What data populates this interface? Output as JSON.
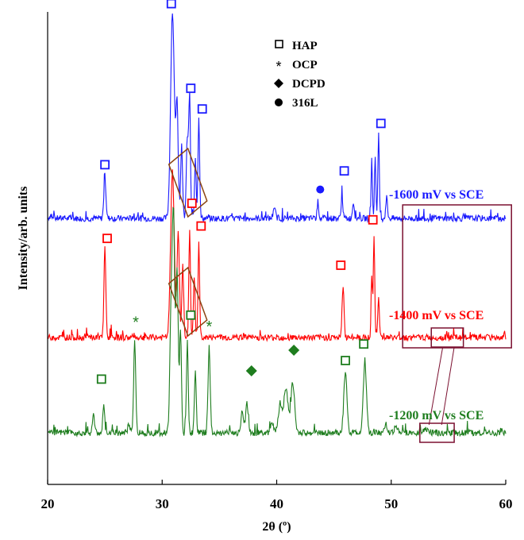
{
  "chart_data": {
    "type": "line",
    "xlabel": "2θ (º)",
    "ylabel": "Intensity/arb. units",
    "xlim": [
      20,
      60
    ],
    "x_ticks": [
      "20",
      "30",
      "40",
      "50",
      "60"
    ],
    "grid": false,
    "legend_position": "top-center",
    "legend": [
      {
        "symbol": "□",
        "label": "HAP"
      },
      {
        "symbol": "*",
        "label": "OCP"
      },
      {
        "symbol": "◆",
        "label": "DCPD"
      },
      {
        "symbol": "●",
        "label": "316L"
      }
    ],
    "series": [
      {
        "name": "-1600 mV vs SCE",
        "color": "#1a1aff",
        "baseline": 0.17,
        "peaks": [
          {
            "x": 25.0,
            "h": 0.2,
            "w": 0.09
          },
          {
            "x": 30.9,
            "h": 1.0,
            "w": 0.16
          },
          {
            "x": 31.3,
            "h": 0.55,
            "w": 0.1
          },
          {
            "x": 31.7,
            "h": 0.35,
            "w": 0.08
          },
          {
            "x": 32.2,
            "h": 0.4,
            "w": 0.09
          },
          {
            "x": 32.4,
            "h": 0.58,
            "w": 0.07
          },
          {
            "x": 32.9,
            "h": 0.3,
            "w": 0.07
          },
          {
            "x": 33.2,
            "h": 0.5,
            "w": 0.07
          },
          {
            "x": 39.8,
            "h": 0.04,
            "w": 0.12
          },
          {
            "x": 43.6,
            "h": 0.08,
            "w": 0.07
          },
          {
            "x": 45.7,
            "h": 0.12,
            "w": 0.07
          },
          {
            "x": 46.7,
            "h": 0.08,
            "w": 0.08
          },
          {
            "x": 48.3,
            "h": 0.28,
            "w": 0.06
          },
          {
            "x": 48.6,
            "h": 0.3,
            "w": 0.06
          },
          {
            "x": 48.9,
            "h": 0.42,
            "w": 0.06
          },
          {
            "x": 49.6,
            "h": 0.1,
            "w": 0.08
          }
        ]
      },
      {
        "name": "-1400 mV vs SCE",
        "color": "#ff0000",
        "baseline": 0.0,
        "peaks": [
          {
            "x": 25.0,
            "h": 0.44,
            "w": 0.08
          },
          {
            "x": 30.9,
            "h": 0.8,
            "w": 0.16
          },
          {
            "x": 31.4,
            "h": 0.5,
            "w": 0.1
          },
          {
            "x": 31.8,
            "h": 0.35,
            "w": 0.08
          },
          {
            "x": 32.4,
            "h": 0.52,
            "w": 0.07
          },
          {
            "x": 32.8,
            "h": 0.3,
            "w": 0.07
          },
          {
            "x": 33.2,
            "h": 0.45,
            "w": 0.07
          },
          {
            "x": 45.8,
            "h": 0.25,
            "w": 0.08
          },
          {
            "x": 48.3,
            "h": 0.3,
            "w": 0.06
          },
          {
            "x": 48.5,
            "h": 0.5,
            "w": 0.06
          },
          {
            "x": 48.9,
            "h": 0.2,
            "w": 0.07
          }
        ]
      },
      {
        "name": "-1200 mV vs SCE",
        "color": "#1e7d1e",
        "baseline": 0.0,
        "peaks": [
          {
            "x": 24.0,
            "h": 0.1,
            "w": 0.08
          },
          {
            "x": 24.9,
            "h": 0.13,
            "w": 0.08
          },
          {
            "x": 27.1,
            "h": 0.04,
            "w": 0.1
          },
          {
            "x": 27.6,
            "h": 0.44,
            "w": 0.09
          },
          {
            "x": 30.8,
            "h": 0.62,
            "w": 0.12
          },
          {
            "x": 31.0,
            "h": 0.92,
            "w": 0.1
          },
          {
            "x": 31.3,
            "h": 0.8,
            "w": 0.1
          },
          {
            "x": 31.6,
            "h": 0.5,
            "w": 0.08
          },
          {
            "x": 32.2,
            "h": 0.42,
            "w": 0.08
          },
          {
            "x": 32.9,
            "h": 0.3,
            "w": 0.08
          },
          {
            "x": 34.1,
            "h": 0.42,
            "w": 0.09
          },
          {
            "x": 37.0,
            "h": 0.1,
            "w": 0.12
          },
          {
            "x": 37.4,
            "h": 0.15,
            "w": 0.1
          },
          {
            "x": 39.6,
            "h": 0.05,
            "w": 0.15
          },
          {
            "x": 40.3,
            "h": 0.14,
            "w": 0.15
          },
          {
            "x": 40.8,
            "h": 0.22,
            "w": 0.18
          },
          {
            "x": 41.4,
            "h": 0.24,
            "w": 0.16
          },
          {
            "x": 46.0,
            "h": 0.29,
            "w": 0.14
          },
          {
            "x": 47.7,
            "h": 0.34,
            "w": 0.14
          },
          {
            "x": 49.5,
            "h": 0.04,
            "w": 0.15
          },
          {
            "x": 50.4,
            "h": 0.03,
            "w": 0.15
          },
          {
            "x": 53.0,
            "h": 0.02,
            "w": 0.2
          }
        ]
      }
    ],
    "annotations": [
      {
        "symbol": "□",
        "series": "-1600 mV vs SCE",
        "x": 25.0,
        "h": 0.26
      },
      {
        "symbol": "□",
        "series": "-1600 mV vs SCE",
        "x": 30.8,
        "h": 1.04
      },
      {
        "symbol": "□",
        "series": "-1600 mV vs SCE",
        "x": 32.5,
        "h": 0.63
      },
      {
        "symbol": "□",
        "series": "-1600 mV vs SCE",
        "x": 33.5,
        "h": 0.53
      },
      {
        "symbol": "●",
        "series": "-1600 mV vs SCE",
        "x": 43.8,
        "h": 0.14
      },
      {
        "symbol": "□",
        "series": "-1600 mV vs SCE",
        "x": 45.9,
        "h": 0.23
      },
      {
        "symbol": "□",
        "series": "-1600 mV vs SCE",
        "x": 49.1,
        "h": 0.46
      },
      {
        "symbol": "□",
        "series": "-1400 mV vs SCE",
        "x": 25.2,
        "h": 0.48
      },
      {
        "symbol": "□",
        "series": "-1400 mV vs SCE",
        "x": 32.6,
        "h": 0.65
      },
      {
        "symbol": "□",
        "series": "-1400 mV vs SCE",
        "x": 33.4,
        "h": 0.54
      },
      {
        "symbol": "□",
        "series": "-1400 mV vs SCE",
        "x": 45.6,
        "h": 0.35
      },
      {
        "symbol": "□",
        "series": "-1400 mV vs SCE",
        "x": 48.4,
        "h": 0.57
      },
      {
        "symbol": "□",
        "series": "-1200 mV vs SCE",
        "x": 24.7,
        "h": 0.26
      },
      {
        "symbol": "*",
        "series": "-1200 mV vs SCE",
        "x": 27.7,
        "h": 0.54
      },
      {
        "symbol": "□",
        "series": "-1200 mV vs SCE",
        "x": 32.5,
        "h": 0.57
      },
      {
        "symbol": "*",
        "series": "-1200 mV vs SCE",
        "x": 34.1,
        "h": 0.52
      },
      {
        "symbol": "◆",
        "series": "-1200 mV vs SCE",
        "x": 37.8,
        "h": 0.3
      },
      {
        "symbol": "◆",
        "series": "-1200 mV vs SCE",
        "x": 41.5,
        "h": 0.4
      },
      {
        "symbol": "□",
        "series": "-1200 mV vs SCE",
        "x": 46.0,
        "h": 0.35
      },
      {
        "symbol": "□",
        "series": "-1200 mV vs SCE",
        "x": 47.6,
        "h": 0.43
      }
    ],
    "highlight_boxes": [
      {
        "series": "-1600 mV vs SCE",
        "x_range": [
          31.0,
          33.5
        ],
        "color": "#8b4513"
      },
      {
        "series": "-1400 mV vs SCE",
        "x_range": [
          31.0,
          33.5
        ],
        "color": "#8b4513"
      },
      {
        "series": "-1400 mV vs SCE",
        "x_range": [
          53.5,
          56.3
        ],
        "color": "#7b1030"
      },
      {
        "series": "-1200 mV vs SCE",
        "x_range": [
          52.5,
          55.5
        ],
        "color": "#7b1030"
      }
    ],
    "inset_box": {
      "x_range": [
        51.0,
        60.5
      ],
      "color": "#7b1030"
    }
  }
}
